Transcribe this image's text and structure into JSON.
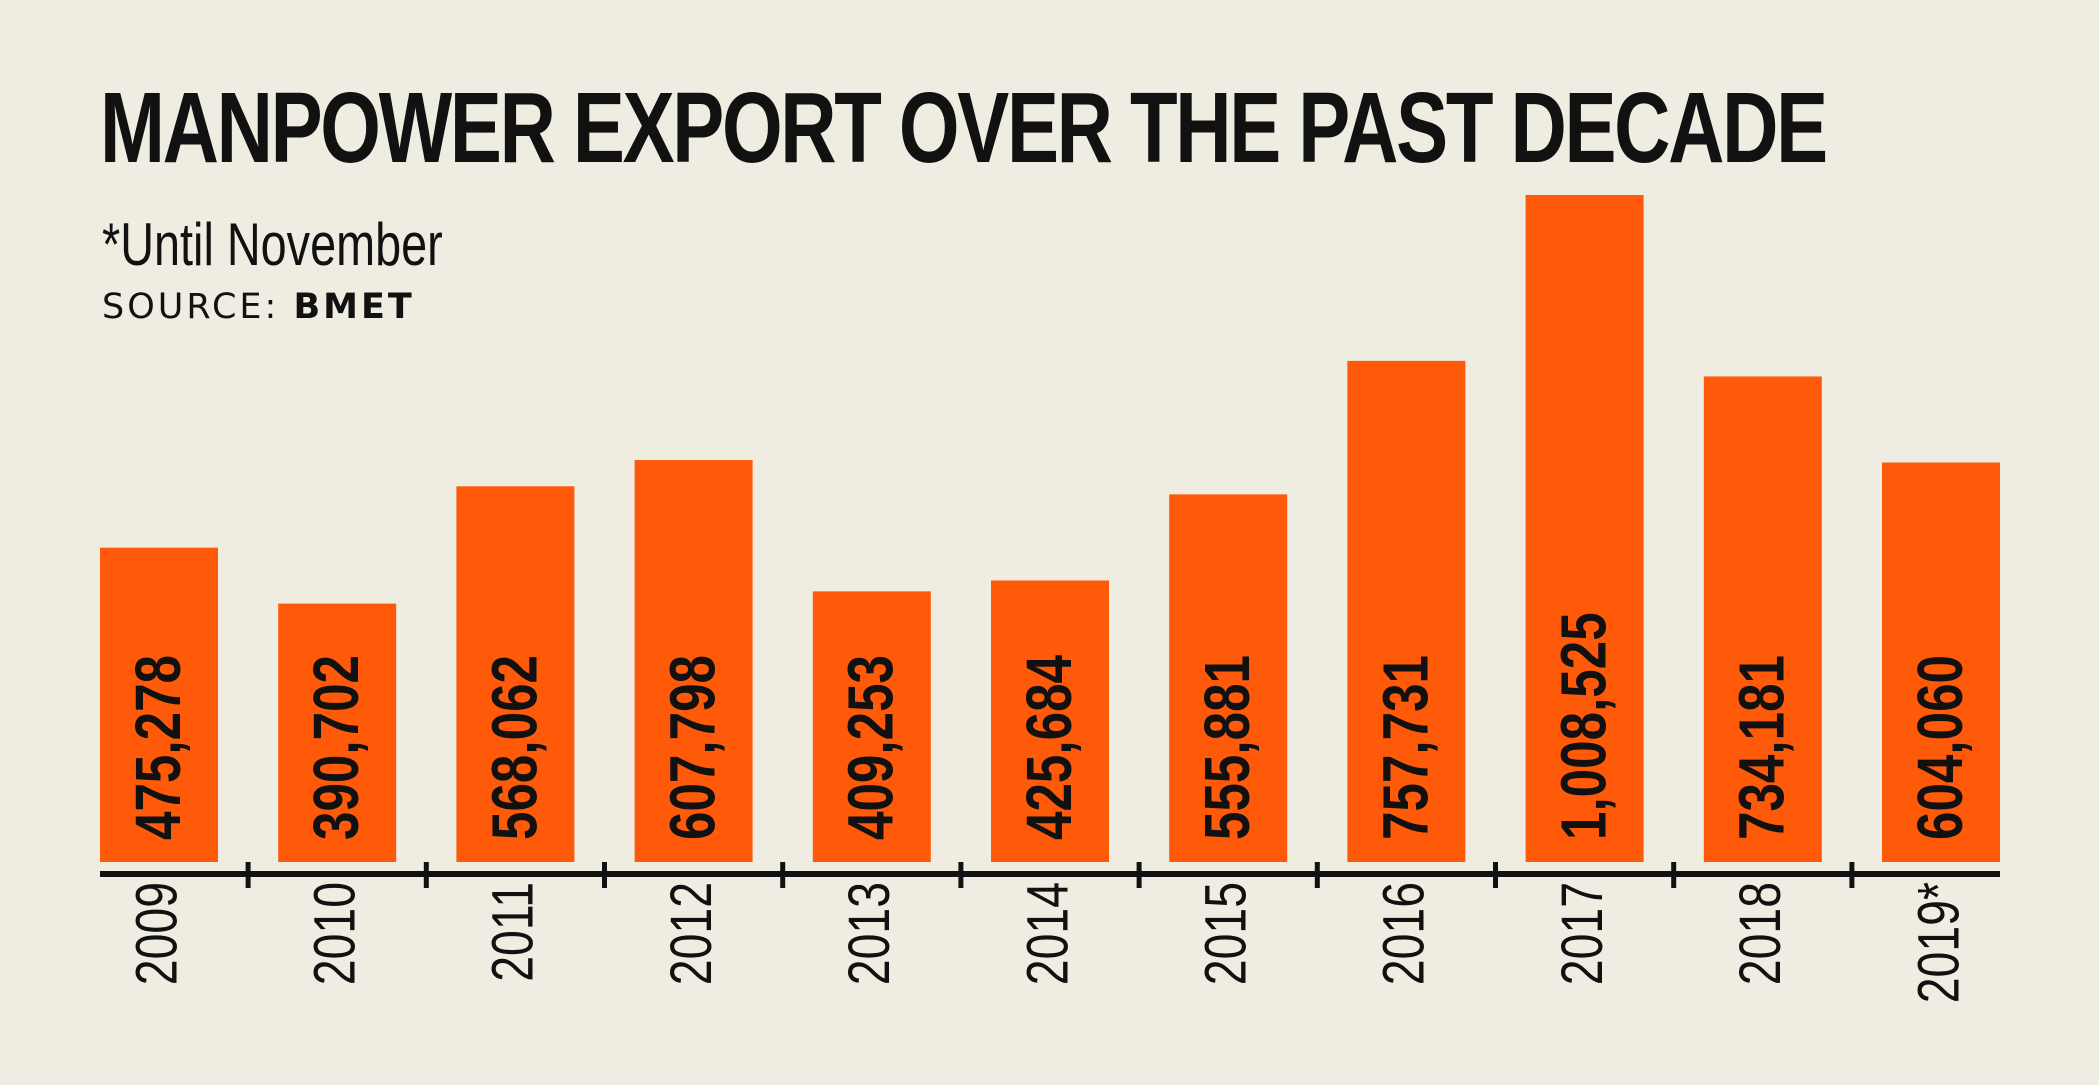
{
  "header": {
    "title": "MANPOWER EXPORT OVER THE PAST DECADE",
    "note": "*Until November",
    "source_label": "SOURCE:",
    "source_value": "BMET"
  },
  "colors": {
    "background": "#efede2",
    "bar": "#ff5a09",
    "text": "#111111"
  },
  "chart_data": {
    "type": "bar",
    "title": "MANPOWER EXPORT OVER THE PAST DECADE",
    "categories": [
      "2009",
      "2010",
      "2011",
      "2012",
      "2013",
      "2014",
      "2015",
      "2016",
      "2017",
      "2018",
      "2019*"
    ],
    "values": [
      475278,
      390702,
      568062,
      607798,
      409253,
      425684,
      555881,
      757731,
      1008525,
      734181,
      604060
    ],
    "data_labels": [
      "475,278",
      "390,702",
      "568,062",
      "607,798",
      "409,253",
      "425,684",
      "555,881",
      "757,731",
      "1,008,525",
      "734,181",
      "604,060"
    ],
    "ylim": [
      0,
      1008525
    ],
    "grid": false,
    "xlabel": "",
    "ylabel": ""
  }
}
